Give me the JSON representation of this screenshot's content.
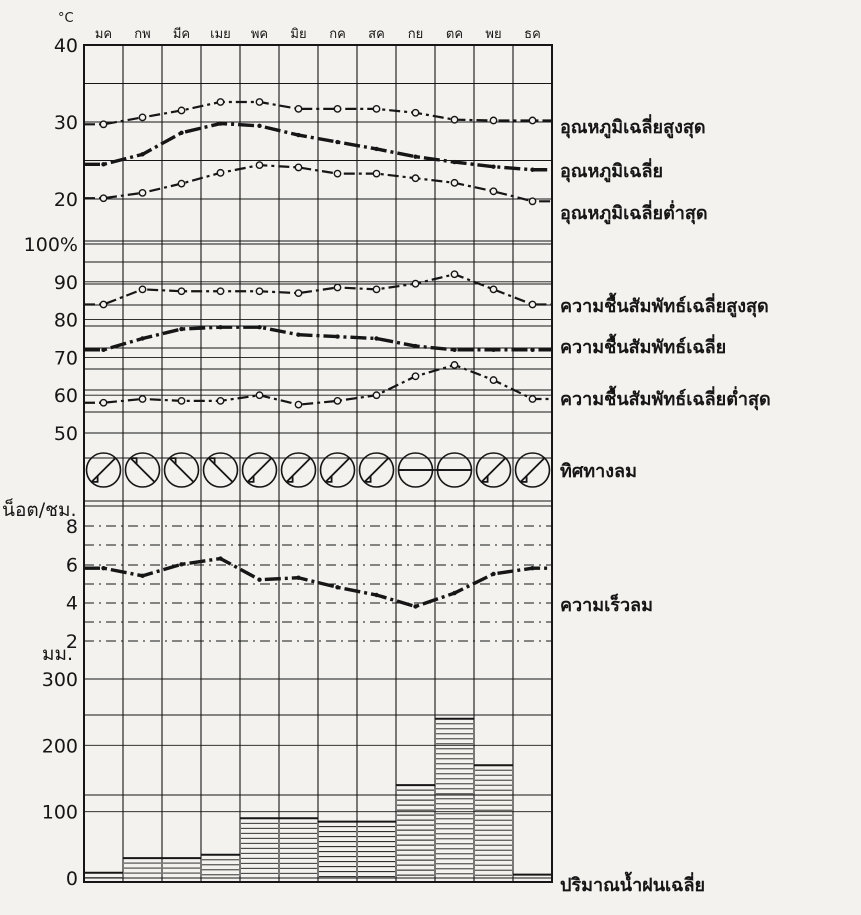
{
  "chart_data": {
    "type": "line",
    "months": [
      "มค",
      "กพ",
      "มีค",
      "เมย",
      "พค",
      "มิย",
      "กค",
      "สค",
      "กย",
      "ตค",
      "พย",
      "ธค"
    ],
    "axes": {
      "temperature": {
        "unit": "°C",
        "ticks": [
          "40",
          "30",
          "20"
        ],
        "ylim": [
          20,
          40
        ]
      },
      "humidity": {
        "unit": "%",
        "ticks": [
          "100%",
          "90",
          "80",
          "70",
          "60",
          "50"
        ],
        "ylim": [
          50,
          100
        ]
      },
      "wind_speed": {
        "unit": "น็อต/ชม.",
        "ticks": [
          "8",
          "6",
          "4",
          "2"
        ],
        "ylim": [
          0,
          9
        ]
      },
      "rainfall": {
        "unit": "มม.",
        "ticks": [
          "300",
          "200",
          "100",
          "0"
        ],
        "ylim": [
          0,
          300
        ]
      }
    },
    "series": [
      {
        "name": "อุณหภูมิเฉลี่ยสูงสุด",
        "panel": "temperature",
        "style": "dash-dot-circle",
        "values": [
          29.7,
          30.6,
          31.5,
          32.6,
          32.6,
          31.7,
          31.7,
          31.7,
          31.2,
          30.3,
          30.2,
          30.2
        ]
      },
      {
        "name": "อุณหภูมิเฉลี่ย",
        "panel": "temperature",
        "style": "thick-dash-dot",
        "values": [
          24.5,
          25.8,
          28.6,
          29.8,
          29.5,
          28.3,
          27.4,
          26.5,
          25.5,
          24.8,
          24.2,
          23.8
        ]
      },
      {
        "name": "อุณหภูมิเฉลี่ยต่ำสุด",
        "panel": "temperature",
        "style": "dash-dot-circle",
        "values": [
          20.1,
          20.8,
          22.0,
          23.4,
          24.4,
          24.1,
          23.3,
          23.3,
          22.7,
          22.1,
          21.0,
          19.7
        ]
      },
      {
        "name": "ความชื้นสัมพัทธ์เฉลี่ยสูงสุด",
        "panel": "humidity",
        "style": "dash-dot-circle",
        "values": [
          84,
          88,
          87.5,
          87.5,
          87.5,
          87,
          88.5,
          88,
          89.5,
          92,
          88,
          84
        ]
      },
      {
        "name": "ความชื้นสัมพัทธ์เฉลี่ย",
        "panel": "humidity",
        "style": "thick-dash-dot",
        "values": [
          72,
          75,
          77.5,
          78,
          78,
          76,
          75.5,
          75,
          73,
          72,
          72,
          72
        ]
      },
      {
        "name": "ความชื้นสัมพัทธ์เฉลี่ยต่ำสุด",
        "panel": "humidity",
        "style": "dash-dot-circle",
        "values": [
          58,
          59,
          58.5,
          58.5,
          60,
          57.5,
          58.5,
          60,
          65,
          68,
          64,
          59
        ]
      },
      {
        "name": "ความเร็วลม",
        "panel": "wind_speed",
        "style": "thick-dash-dot",
        "values": [
          5.8,
          5.4,
          6.0,
          6.3,
          5.2,
          5.3,
          4.8,
          4.4,
          3.8,
          4.5,
          5.5,
          5.8
        ]
      }
    ],
    "wind_direction": {
      "label": "ทิศทางลม",
      "directions": [
        "NE",
        "NW",
        "NW",
        "NW",
        "SW",
        "SW",
        "SW",
        "SW",
        "E",
        "E",
        "NE",
        "NE"
      ]
    },
    "rainfall": {
      "label": "ปริมาณน้ำฝนเฉลี่ย",
      "values": [
        8,
        30,
        30,
        35,
        90,
        90,
        85,
        85,
        140,
        240,
        170,
        5
      ]
    }
  }
}
